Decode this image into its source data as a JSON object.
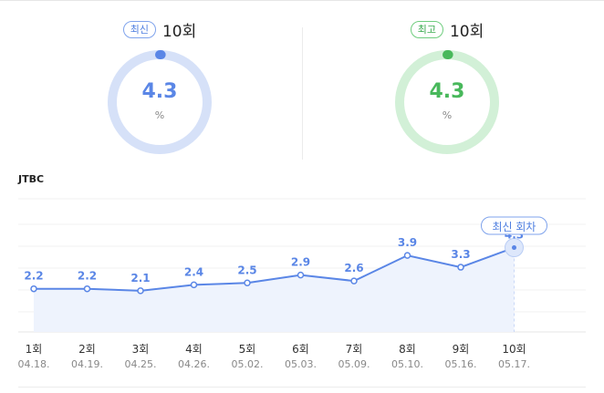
{
  "summary": {
    "latest": {
      "badge": "최신",
      "episode": "10회",
      "value": "4.3",
      "unit": "%",
      "color": "#5a86e6",
      "track_color": "#d6e1f8"
    },
    "best": {
      "badge": "최고",
      "episode": "10회",
      "value": "4.3",
      "unit": "%",
      "color": "#48b85b",
      "track_color": "#d2f0d7"
    }
  },
  "chart_title": "JTBC",
  "chart_data": {
    "type": "area",
    "title": "JTBC",
    "categories": [
      "1회",
      "2회",
      "3회",
      "4회",
      "5회",
      "6회",
      "7회",
      "8회",
      "9회",
      "10회"
    ],
    "dates": [
      "04.18.",
      "04.19.",
      "04.25.",
      "04.26.",
      "05.02.",
      "05.03.",
      "05.09.",
      "05.10.",
      "05.16.",
      "05.17."
    ],
    "values": [
      2.2,
      2.2,
      2.1,
      2.4,
      2.5,
      2.9,
      2.6,
      3.9,
      3.3,
      4.3
    ],
    "labels": [
      "2.2",
      "2.2",
      "2.1",
      "2.4",
      "2.5",
      "2.9",
      "2.6",
      "3.9",
      "3.3",
      "4.3"
    ],
    "ylim": [
      0,
      10
    ],
    "grid": true,
    "highlight": {
      "index": 9,
      "label": "최신 회차"
    },
    "line_color": "#5a86e6",
    "fill_color": "#eef3fd"
  }
}
